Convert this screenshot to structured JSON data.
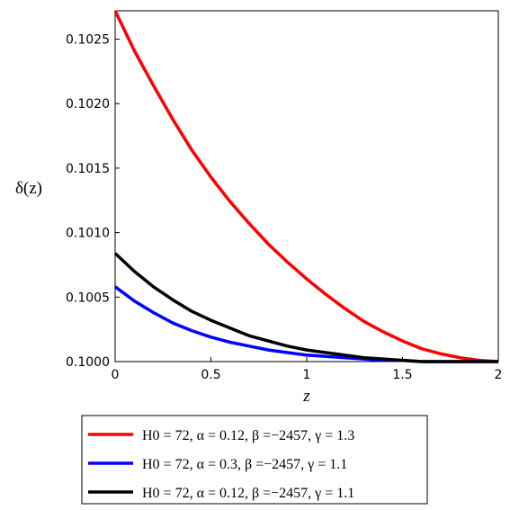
{
  "chart_data": {
    "type": "line",
    "xlabel": "z",
    "ylabel": "δ(z)",
    "xlim": [
      0,
      2
    ],
    "ylim": [
      0.1,
      0.10272
    ],
    "x_ticks": [
      0,
      0.5,
      1,
      1.5,
      2
    ],
    "x_tick_labels": [
      "0",
      "0.5",
      "1",
      "1.5",
      "2"
    ],
    "y_ticks": [
      0.1,
      0.1005,
      0.101,
      0.1015,
      0.102,
      0.1025
    ],
    "y_tick_labels": [
      "0.1000",
      "0.1005",
      "0.1010",
      "0.1015",
      "0.1020",
      "0.1025"
    ],
    "grid": false,
    "legend_position": "bottom",
    "series": [
      {
        "name": "H0 = 72, α = 0.12, β =−2457, γ = 1.3",
        "color": "#ff0000",
        "x": [
          0,
          0.1,
          0.2,
          0.3,
          0.4,
          0.5,
          0.6,
          0.7,
          0.8,
          0.9,
          1.0,
          1.1,
          1.2,
          1.3,
          1.4,
          1.5,
          1.6,
          1.7,
          1.8,
          1.9,
          2.0
        ],
        "values": [
          0.10272,
          0.10241,
          0.10214,
          0.10188,
          0.10164,
          0.10143,
          0.10124,
          0.10107,
          0.10091,
          0.10077,
          0.10064,
          0.10052,
          0.10041,
          0.10031,
          0.10023,
          0.10016,
          0.1001,
          0.10006,
          0.10003,
          0.10001,
          0.1
        ]
      },
      {
        "name": "H0 = 72, α = 0.3, β =−2457, γ = 1.1",
        "color": "#0000ff",
        "x": [
          0,
          0.1,
          0.2,
          0.3,
          0.4,
          0.5,
          0.6,
          0.7,
          0.8,
          0.9,
          1.0,
          1.1,
          1.2,
          1.3,
          1.4,
          1.5,
          1.6,
          1.7,
          1.8,
          1.9,
          2.0
        ],
        "values": [
          0.10058,
          0.10047,
          0.10038,
          0.1003,
          0.10024,
          0.10019,
          0.10015,
          0.10012,
          0.10009,
          0.10007,
          0.10005,
          0.10004,
          0.10003,
          0.10002,
          0.10001,
          0.10001,
          0.1,
          0.1,
          0.1,
          0.1,
          0.1
        ]
      },
      {
        "name": "H0 = 72, α = 0.12, β =−2457, γ = 1.1",
        "color": "#000000",
        "x": [
          0,
          0.1,
          0.2,
          0.3,
          0.4,
          0.5,
          0.6,
          0.7,
          0.8,
          0.9,
          1.0,
          1.1,
          1.2,
          1.3,
          1.4,
          1.5,
          1.6,
          1.7,
          1.8,
          1.9,
          2.0
        ],
        "values": [
          0.10084,
          0.1007,
          0.10058,
          0.10048,
          0.10039,
          0.10032,
          0.10026,
          0.1002,
          0.10016,
          0.10012,
          0.10009,
          0.10007,
          0.10005,
          0.10003,
          0.10002,
          0.10001,
          0.1,
          0.1,
          0.1,
          0.1,
          0.1
        ]
      }
    ]
  }
}
